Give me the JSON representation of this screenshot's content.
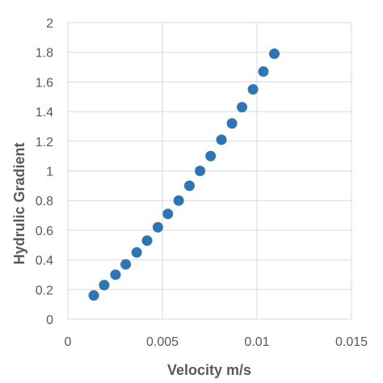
{
  "chart_data": {
    "type": "scatter",
    "title": "",
    "xlabel": "Velocity m/s",
    "ylabel": "Hydrulic Gradient",
    "xlim": [
      0,
      0.015
    ],
    "ylim": [
      0,
      2
    ],
    "x_ticks": [
      0,
      0.005,
      0.01,
      0.015
    ],
    "x_tick_labels": [
      "0",
      "0.005",
      "0.01",
      "0.015"
    ],
    "y_ticks": [
      0,
      0.2,
      0.4,
      0.6,
      0.8,
      1,
      1.2,
      1.4,
      1.6,
      1.8,
      2
    ],
    "y_tick_labels": [
      "0",
      "0.2",
      "0.4",
      "0.6",
      "0.8",
      "1",
      "1.2",
      "1.4",
      "1.6",
      "1.8",
      "2"
    ],
    "grid": true,
    "legend": "none",
    "marker_color": "#2e75b6",
    "series": [
      {
        "x": [
          0.00137,
          0.00192,
          0.00252,
          0.00306,
          0.00364,
          0.00419,
          0.00476,
          0.00529,
          0.00586,
          0.00643,
          0.00699,
          0.00755,
          0.00812,
          0.00868,
          0.00921,
          0.00979,
          0.01034,
          0.01092
        ],
        "y": [
          0.16,
          0.23,
          0.3,
          0.37,
          0.45,
          0.53,
          0.62,
          0.71,
          0.8,
          0.9,
          1.0,
          1.1,
          1.21,
          1.32,
          1.43,
          1.55,
          1.67,
          1.79
        ]
      }
    ]
  }
}
